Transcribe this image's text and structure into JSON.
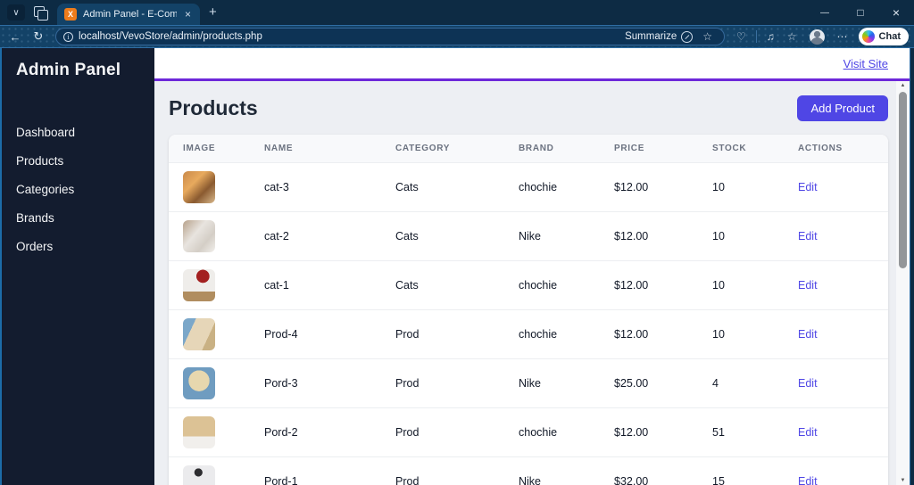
{
  "browser": {
    "tab_title": "Admin Panel - E-Commerce",
    "favicon_letter": "X",
    "tab_close": "×",
    "new_tab": "+",
    "back": "←",
    "refresh": "↻",
    "url": "localhost/VevoStore/admin/products.php",
    "summarize_label": "Summarize",
    "favorite_star": "☆",
    "essentials": "♡",
    "media": "♫",
    "collections": "☆",
    "more": "⋯",
    "chat_label": "Chat",
    "window_controls": {
      "minimize": "—",
      "maximize": "□",
      "close": "×"
    },
    "scroll_up": "▲",
    "scroll_down": "▼"
  },
  "sidebar": {
    "title": "Admin Panel",
    "items": [
      {
        "label": "Dashboard"
      },
      {
        "label": "Products"
      },
      {
        "label": "Categories"
      },
      {
        "label": "Brands"
      },
      {
        "label": "Orders"
      }
    ]
  },
  "topbar": {
    "visit_site_label": "Visit Site"
  },
  "main": {
    "heading": "Products",
    "add_product_label": "Add Product",
    "table": {
      "columns": [
        "IMAGE",
        "NAME",
        "CATEGORY",
        "BRAND",
        "PRICE",
        "STOCK",
        "ACTIONS"
      ],
      "rows": [
        {
          "name": "cat-3",
          "category": "Cats",
          "brand": "chochie",
          "price": "$12.00",
          "stock": "10",
          "action": "Edit",
          "thumb_css": "linear-gradient(135deg,#c9894a 0%,#e8aa5e 35%,#8a5a30 65%,#d9b98c 100%)"
        },
        {
          "name": "cat-2",
          "category": "Cats",
          "brand": "Nike",
          "price": "$12.00",
          "stock": "10",
          "action": "Edit",
          "thumb_css": "linear-gradient(130deg,#b7a18a 0%,#e8e4df 40%,#d4cec6 70%,#f2f0ec 100%)"
        },
        {
          "name": "cat-1",
          "category": "Cats",
          "brand": "chochie",
          "price": "$12.00",
          "stock": "10",
          "action": "Edit",
          "thumb_css": "radial-gradient(circle at 62% 22%, #a32020 0 20%, rgba(0,0,0,0) 21%), linear-gradient(180deg,#efedea 0 70%,#b08d5f 70% 100%)"
        },
        {
          "name": "Prod-4",
          "category": "Prod",
          "brand": "chochie",
          "price": "$12.00",
          "stock": "10",
          "action": "Edit",
          "thumb_css": "linear-gradient(115deg,#7ba7c9 0 28%,#e6d6b8 28% 72%,#c9b184 72% 100%)"
        },
        {
          "name": "Pord-3",
          "category": "Prod",
          "brand": "Nike",
          "price": "$25.00",
          "stock": "4",
          "action": "Edit",
          "thumb_css": "radial-gradient(circle at 50% 42%, #e7d7ae 0 42%, #6f9cc0 43%)"
        },
        {
          "name": "Pord-2",
          "category": "Prod",
          "brand": "chochie",
          "price": "$12.00",
          "stock": "51",
          "action": "Edit",
          "thumb_css": "linear-gradient(180deg,#dcc295 0 62%,#f1efec 62% 100%)"
        },
        {
          "name": "Pord-1",
          "category": "Prod",
          "brand": "Nike",
          "price": "$32.00",
          "stock": "15",
          "action": "Edit",
          "thumb_css": "radial-gradient(circle at 48% 22%, #2d2d30 0 13%, rgba(0,0,0,0) 14%), linear-gradient(180deg,#ebebed 0 100%)"
        }
      ]
    }
  },
  "colors": {
    "accent": "#4f46e5",
    "topbar_border": "#6d28d9",
    "sidebar_bg": "#131c2f",
    "chrome_bg": "#0d2b44",
    "toolbar_bg": "#134267",
    "favicon_bg": "#ee7c1b"
  }
}
